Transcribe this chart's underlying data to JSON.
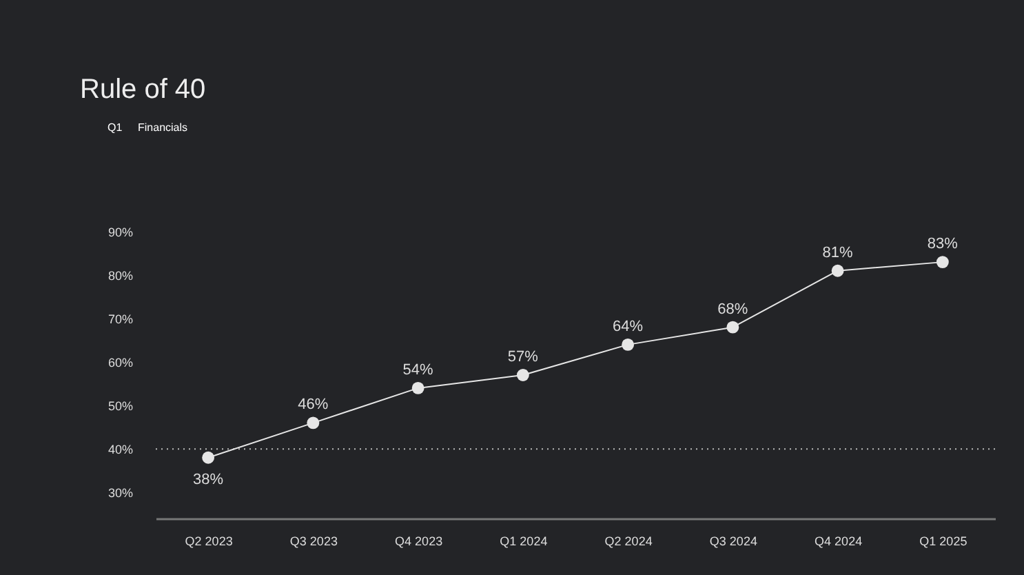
{
  "chart_data": {
    "type": "line",
    "title": "Rule of 40",
    "annotations": [
      "Q1",
      "Financials"
    ],
    "categories": [
      "Q2 2023",
      "Q3 2023",
      "Q4 2023",
      "Q1 2024",
      "Q2 2024",
      "Q3 2024",
      "Q4 2024",
      "Q1 2025"
    ],
    "series": [
      {
        "color": "#e6e6e6",
        "values": [
          38,
          46,
          54,
          57,
          64,
          68,
          81,
          83
        ],
        "value_labels": [
          "38%",
          "46%",
          "54%",
          "57%",
          "64%",
          "68%",
          "81%",
          "83%"
        ]
      }
    ],
    "ylim": [
      24,
      90
    ],
    "yticks": [
      {
        "value": 30,
        "label": "30%"
      },
      {
        "value": 40,
        "label": "40%"
      },
      {
        "value": 50,
        "label": "50%"
      },
      {
        "value": 60,
        "label": "60%"
      },
      {
        "value": 70,
        "label": "70%"
      },
      {
        "value": 80,
        "label": "80%"
      },
      {
        "value": 90,
        "label": "90%"
      }
    ],
    "ref_lines": [
      {
        "axis": "y",
        "value": 40,
        "color": "#bbbbbb",
        "line_style": "dotted"
      }
    ],
    "marker": "circle",
    "line_style": "solid",
    "grid": false
  }
}
